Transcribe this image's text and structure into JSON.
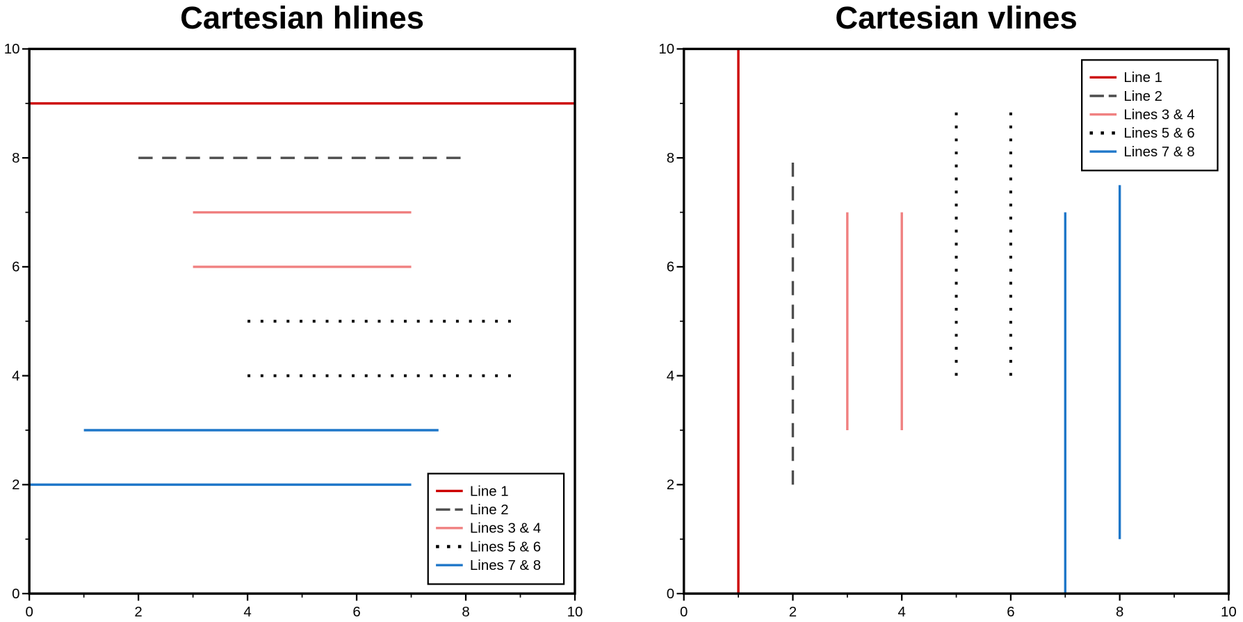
{
  "chart_data": [
    {
      "type": "hlines",
      "title": "Cartesian hlines",
      "xlim": [
        0,
        10
      ],
      "ylim": [
        0,
        10
      ],
      "xticks": [
        0,
        2,
        4,
        6,
        8,
        10
      ],
      "yticks": [
        0,
        2,
        4,
        6,
        8,
        10
      ],
      "xminorticks": [
        1,
        3,
        5,
        7,
        9
      ],
      "yminorticks": [
        1,
        3,
        5,
        7,
        9
      ],
      "legend": "lower right",
      "series": [
        {
          "name": "Line 1",
          "color": "#cc0000",
          "style": "solid",
          "lines": [
            {
              "y": 9,
              "xmin": 0,
              "xmax": 10
            }
          ]
        },
        {
          "name": "Line 2",
          "color": "#4d4d4d",
          "style": "dashed",
          "lines": [
            {
              "y": 8,
              "xmin": 2,
              "xmax": 8
            }
          ]
        },
        {
          "name": "Lines 3 & 4",
          "color": "#f08080",
          "style": "solid",
          "lines": [
            {
              "y": 7,
              "xmin": 3,
              "xmax": 7
            },
            {
              "y": 6,
              "xmin": 3,
              "xmax": 7
            }
          ]
        },
        {
          "name": "Lines 5 & 6",
          "color": "#000000",
          "style": "dotted",
          "lines": [
            {
              "y": 5,
              "xmin": 4,
              "xmax": 9
            },
            {
              "y": 4,
              "xmin": 4,
              "xmax": 9
            }
          ]
        },
        {
          "name": "Lines 7 & 8",
          "color": "#1f77c9",
          "style": "solid",
          "lines": [
            {
              "y": 3,
              "xmin": 1,
              "xmax": 7.5
            },
            {
              "y": 2,
              "xmin": 0,
              "xmax": 7
            }
          ]
        }
      ]
    },
    {
      "type": "vlines",
      "title": "Cartesian vlines",
      "xlim": [
        0,
        10
      ],
      "ylim": [
        0,
        10
      ],
      "xticks": [
        0,
        2,
        4,
        6,
        8,
        10
      ],
      "yticks": [
        0,
        2,
        4,
        6,
        8,
        10
      ],
      "xminorticks": [
        1,
        3,
        5,
        7,
        9
      ],
      "yminorticks": [
        1,
        3,
        5,
        7,
        9
      ],
      "legend": "upper right",
      "series": [
        {
          "name": "Line 1",
          "color": "#cc0000",
          "style": "solid",
          "lines": [
            {
              "x": 1,
              "ymin": 0,
              "ymax": 10
            }
          ]
        },
        {
          "name": "Line 2",
          "color": "#4d4d4d",
          "style": "dashed",
          "lines": [
            {
              "x": 2,
              "ymin": 2,
              "ymax": 8
            }
          ]
        },
        {
          "name": "Lines 3 & 4",
          "color": "#f08080",
          "style": "solid",
          "lines": [
            {
              "x": 3,
              "ymin": 3,
              "ymax": 7
            },
            {
              "x": 4,
              "ymin": 3,
              "ymax": 7
            }
          ]
        },
        {
          "name": "Lines 5 & 6",
          "color": "#000000",
          "style": "dotted",
          "lines": [
            {
              "x": 5,
              "ymin": 4,
              "ymax": 9
            },
            {
              "x": 6,
              "ymin": 4,
              "ymax": 9
            }
          ]
        },
        {
          "name": "Lines 7 & 8",
          "color": "#1f77c9",
          "style": "solid",
          "lines": [
            {
              "x": 7,
              "ymin": 0,
              "ymax": 7
            },
            {
              "x": 8,
              "ymin": 1,
              "ymax": 7.5
            }
          ]
        }
      ]
    }
  ]
}
